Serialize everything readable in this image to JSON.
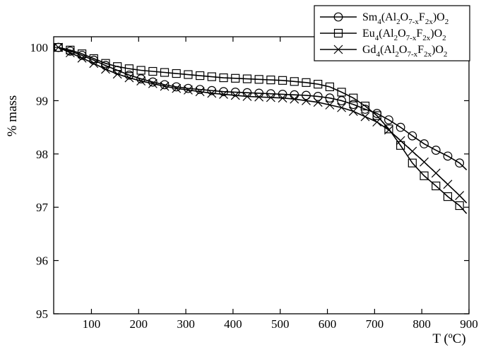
{
  "chart_data": {
    "type": "line",
    "title": "",
    "xlabel": "T (ºC)",
    "ylabel": "% mass",
    "xlim": [
      20,
      900
    ],
    "ylim": [
      95,
      100.2
    ],
    "xticks": [
      100,
      200,
      300,
      400,
      500,
      600,
      700,
      800,
      900
    ],
    "yticks": [
      95,
      96,
      97,
      98,
      99,
      100
    ],
    "grid": false,
    "legend_position": "top-right",
    "series": [
      {
        "name": "Sm4(Al2O7-xF2x)O2",
        "legend": {
          "base": "Sm",
          "sub1": "4",
          "mid1": "(Al",
          "sub2": "2",
          "mid2": "O",
          "sub3": "7-x",
          "mid3": "F",
          "sub4": "2x",
          "mid4": ")O",
          "sub5": "2"
        },
        "marker": "circle",
        "x": [
          30,
          55,
          80,
          105,
          130,
          155,
          180,
          205,
          230,
          255,
          280,
          305,
          330,
          355,
          380,
          405,
          430,
          455,
          480,
          505,
          530,
          555,
          580,
          605,
          630,
          655,
          680,
          705,
          730,
          755,
          780,
          805,
          830,
          855,
          880,
          895
        ],
        "y": [
          100.0,
          99.93,
          99.85,
          99.76,
          99.66,
          99.57,
          99.48,
          99.41,
          99.35,
          99.3,
          99.26,
          99.23,
          99.21,
          99.19,
          99.17,
          99.16,
          99.15,
          99.14,
          99.13,
          99.12,
          99.11,
          99.1,
          99.08,
          99.05,
          99.0,
          98.93,
          98.84,
          98.76,
          98.64,
          98.5,
          98.34,
          98.19,
          98.07,
          97.96,
          97.83,
          97.7
        ]
      },
      {
        "name": "Eu4(Al2O7-xF2x)O2",
        "legend": {
          "base": "Eu",
          "sub1": "4",
          "mid1": "(Al",
          "sub2": "2",
          "mid2": "O",
          "sub3": "7-x",
          "mid3": "F",
          "sub4": "2x",
          "mid4": ")O",
          "sub5": "2"
        },
        "marker": "square",
        "x": [
          30,
          55,
          80,
          105,
          130,
          155,
          180,
          205,
          230,
          255,
          280,
          305,
          330,
          355,
          380,
          405,
          430,
          455,
          480,
          505,
          530,
          555,
          580,
          605,
          630,
          655,
          680,
          705,
          730,
          755,
          780,
          805,
          830,
          855,
          880,
          895
        ],
        "y": [
          100.0,
          99.95,
          99.88,
          99.79,
          99.7,
          99.64,
          99.6,
          99.57,
          99.55,
          99.53,
          99.51,
          99.49,
          99.47,
          99.45,
          99.43,
          99.42,
          99.41,
          99.4,
          99.39,
          99.38,
          99.36,
          99.34,
          99.31,
          99.26,
          99.16,
          99.05,
          98.9,
          98.72,
          98.47,
          98.16,
          97.83,
          97.59,
          97.4,
          97.2,
          97.03,
          96.88
        ]
      },
      {
        "name": "Gd4(Al2O7-xF2x)O2",
        "legend": {
          "base": "Gd",
          "sub1": "4",
          "mid1": "(Al",
          "sub2": "2",
          "mid2": "O",
          "sub3": "7-x",
          "mid3": "F",
          "sub4": "2x",
          "mid4": ")O",
          "sub5": "2"
        },
        "marker": "x",
        "x": [
          30,
          55,
          80,
          105,
          130,
          155,
          180,
          205,
          230,
          255,
          280,
          305,
          330,
          355,
          380,
          405,
          430,
          455,
          480,
          505,
          530,
          555,
          580,
          605,
          630,
          655,
          680,
          705,
          730,
          755,
          780,
          805,
          830,
          855,
          880,
          895
        ],
        "y": [
          100.0,
          99.9,
          99.8,
          99.7,
          99.59,
          99.5,
          99.43,
          99.37,
          99.32,
          99.27,
          99.23,
          99.2,
          99.17,
          99.14,
          99.12,
          99.1,
          99.08,
          99.07,
          99.06,
          99.05,
          99.03,
          99.0,
          98.97,
          98.92,
          98.87,
          98.8,
          98.7,
          98.6,
          98.45,
          98.25,
          98.05,
          97.85,
          97.64,
          97.43,
          97.22,
          97.08
        ]
      }
    ]
  }
}
